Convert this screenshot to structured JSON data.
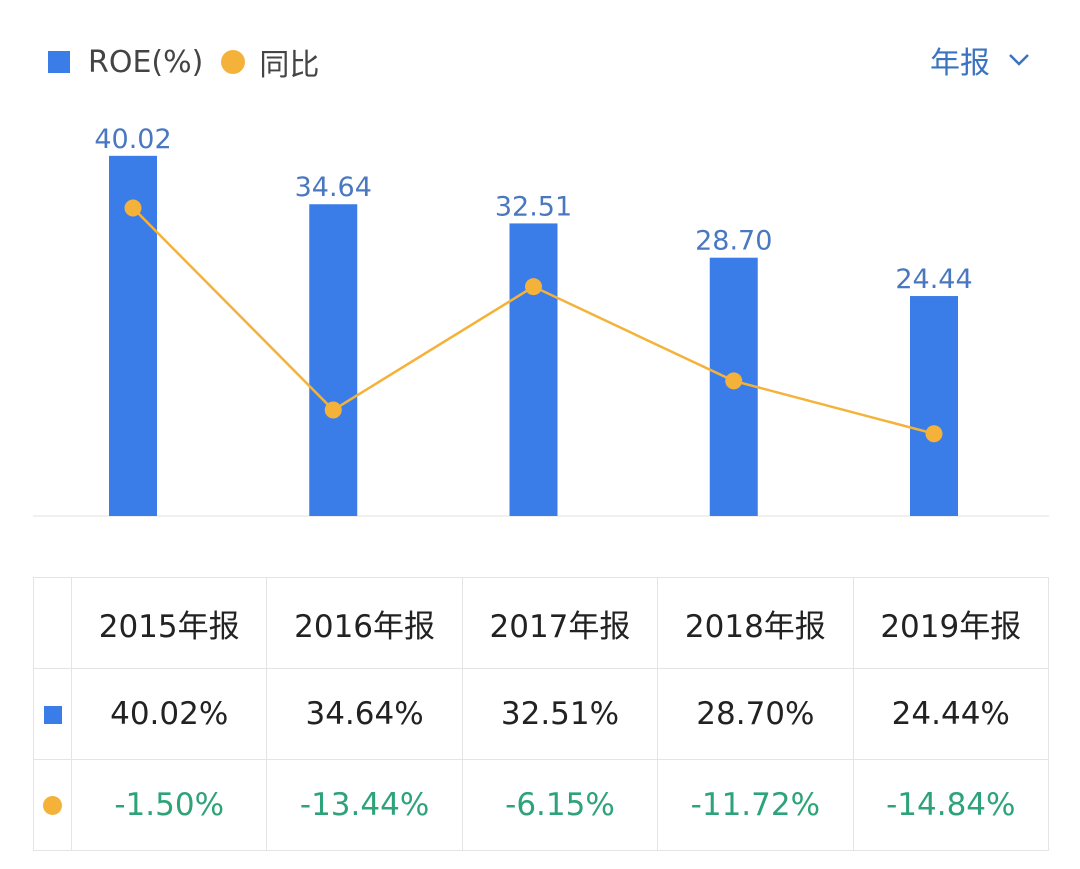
{
  "legend": {
    "roe_label": "ROE(%)",
    "yoy_label": "同比"
  },
  "period_selector": {
    "label": "年报",
    "icon": "chevron-down-icon"
  },
  "colors": {
    "bar": "#3b7de8",
    "line": "#f4b23a",
    "yoy_text": "#2ea37a",
    "label_text": "#4a78c0",
    "period_text": "#3a74c0"
  },
  "chart_data": {
    "type": "bar+line",
    "categories": [
      "2015年报",
      "2016年报",
      "2017年报",
      "2018年报",
      "2019年报"
    ],
    "series": [
      {
        "name": "ROE(%)",
        "type": "bar",
        "values": [
          40.02,
          34.64,
          32.51,
          28.7,
          24.44
        ],
        "labels": [
          "40.02",
          "34.64",
          "32.51",
          "28.70",
          "24.44"
        ]
      },
      {
        "name": "同比",
        "type": "line",
        "values": [
          -1.5,
          -13.44,
          -6.15,
          -11.72,
          -14.84
        ]
      }
    ],
    "grid": false
  },
  "table": {
    "headers": [
      "2015年报",
      "2016年报",
      "2017年报",
      "2018年报",
      "2019年报"
    ],
    "roe_row": [
      "40.02%",
      "34.64%",
      "32.51%",
      "28.70%",
      "24.44%"
    ],
    "yoy_row": [
      "-1.50%",
      "-13.44%",
      "-6.15%",
      "-11.72%",
      "-14.84%"
    ]
  }
}
